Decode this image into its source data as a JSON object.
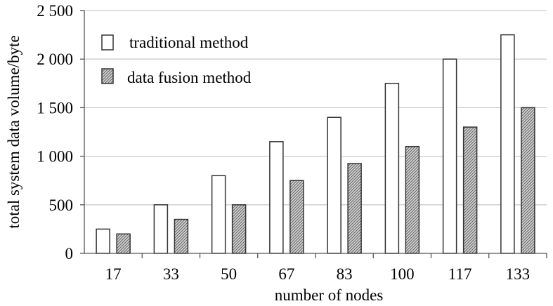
{
  "chart_data": {
    "type": "bar",
    "categories": [
      "17",
      "33",
      "50",
      "67",
      "83",
      "100",
      "117",
      "133"
    ],
    "series": [
      {
        "name": "traditional method",
        "values": [
          250,
          500,
          800,
          1150,
          1400,
          1750,
          2000,
          2250
        ]
      },
      {
        "name": "data fusion method",
        "values": [
          200,
          350,
          500,
          750,
          925,
          1100,
          1300,
          1500
        ]
      }
    ],
    "xlabel": "number of nodes",
    "ylabel": "total system data volume/byte",
    "ylim": [
      0,
      2500
    ],
    "yticks": [
      {
        "value": 0,
        "label": "0"
      },
      {
        "value": 500,
        "label": "500"
      },
      {
        "value": 1000,
        "label": "1 000"
      },
      {
        "value": 1500,
        "label": "1 500"
      },
      {
        "value": 2000,
        "label": "2 000"
      },
      {
        "value": 2500,
        "label": "2 500"
      }
    ],
    "grid": true,
    "legend_position": "top-left",
    "colors": {
      "axis": "#555555",
      "grid": "#cccccc",
      "bar_edge": "#333333",
      "bar_fill": "#ffffff",
      "hatch": "#8a8a8a"
    }
  }
}
